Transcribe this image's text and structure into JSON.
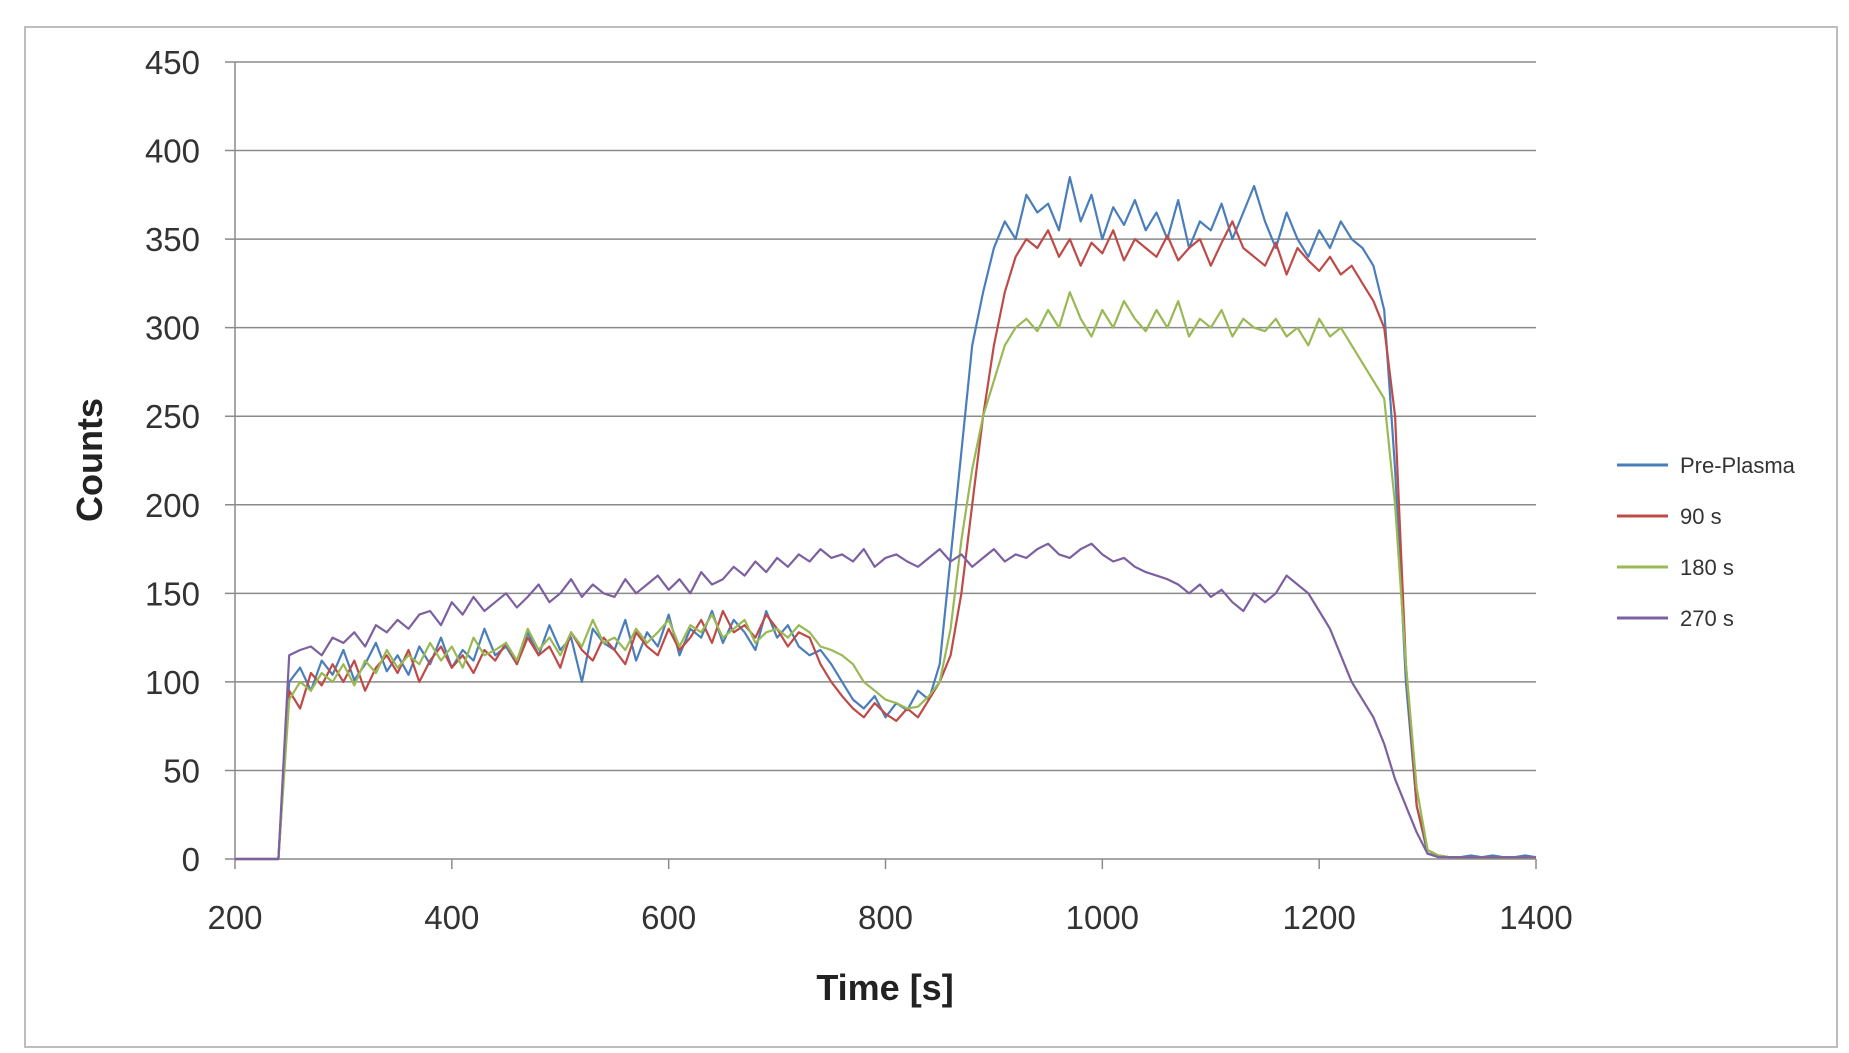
{
  "chart_data": {
    "type": "line",
    "title": "",
    "xlabel": "Time [s]",
    "ylabel": "Counts",
    "xlim": [
      200,
      1400
    ],
    "ylim": [
      0,
      450
    ],
    "xticks": [
      200,
      400,
      600,
      800,
      1000,
      1200,
      1400
    ],
    "yticks": [
      0,
      50,
      100,
      150,
      200,
      250,
      300,
      350,
      400,
      450
    ],
    "grid": "horizontal",
    "legend_position": "right",
    "x_start": 200,
    "x_step": 10,
    "series": [
      {
        "name": "Pre-Plasma",
        "color": "#4a7ebb",
        "values": [
          0,
          0,
          0,
          0,
          0,
          100,
          108,
          95,
          112,
          104,
          118,
          101,
          110,
          122,
          106,
          115,
          104,
          120,
          110,
          125,
          108,
          118,
          112,
          130,
          115,
          120,
          110,
          128,
          115,
          132,
          118,
          125,
          100,
          130,
          122,
          118,
          135,
          112,
          128,
          120,
          138,
          115,
          130,
          125,
          140,
          122,
          135,
          128,
          118,
          140,
          125,
          132,
          120,
          115,
          118,
          110,
          100,
          90,
          85,
          92,
          80,
          88,
          84,
          95,
          90,
          110,
          170,
          230,
          290,
          320,
          345,
          360,
          350,
          375,
          365,
          370,
          355,
          385,
          360,
          375,
          350,
          368,
          358,
          372,
          355,
          365,
          350,
          372,
          345,
          360,
          355,
          370,
          350,
          365,
          380,
          360,
          345,
          365,
          350,
          340,
          355,
          345,
          360,
          350,
          345,
          335,
          310,
          220,
          100,
          30,
          3,
          2,
          1,
          1,
          2,
          1,
          2,
          1,
          1,
          2,
          1
        ]
      },
      {
        "name": "90 s",
        "color": "#be4b48",
        "values": [
          0,
          0,
          0,
          0,
          0,
          95,
          85,
          105,
          98,
          110,
          100,
          112,
          95,
          108,
          115,
          105,
          118,
          100,
          112,
          120,
          108,
          115,
          105,
          118,
          112,
          122,
          110,
          125,
          115,
          120,
          108,
          128,
          118,
          112,
          125,
          118,
          110,
          128,
          120,
          115,
          130,
          118,
          125,
          135,
          122,
          140,
          128,
          132,
          125,
          138,
          130,
          120,
          128,
          125,
          110,
          100,
          92,
          85,
          80,
          88,
          82,
          78,
          85,
          80,
          90,
          100,
          115,
          150,
          200,
          250,
          290,
          320,
          340,
          350,
          345,
          355,
          340,
          350,
          335,
          348,
          342,
          355,
          338,
          350,
          345,
          340,
          352,
          338,
          345,
          350,
          335,
          348,
          360,
          345,
          340,
          335,
          348,
          330,
          345,
          338,
          332,
          340,
          330,
          335,
          325,
          315,
          300,
          250,
          110,
          30,
          5,
          2,
          1,
          1,
          1,
          1,
          1,
          1,
          1,
          1,
          1
        ]
      },
      {
        "name": "180 s",
        "color": "#98b954",
        "values": [
          0,
          0,
          0,
          0,
          0,
          90,
          100,
          95,
          105,
          100,
          110,
          98,
          112,
          105,
          118,
          108,
          115,
          110,
          122,
          112,
          120,
          108,
          125,
          115,
          118,
          122,
          112,
          130,
          118,
          125,
          115,
          128,
          120,
          135,
          122,
          125,
          118,
          130,
          122,
          128,
          135,
          120,
          132,
          128,
          138,
          125,
          130,
          135,
          122,
          128,
          130,
          125,
          132,
          128,
          120,
          118,
          115,
          110,
          100,
          95,
          90,
          88,
          85,
          86,
          92,
          100,
          130,
          180,
          220,
          250,
          270,
          290,
          300,
          305,
          298,
          310,
          300,
          320,
          305,
          295,
          310,
          300,
          315,
          305,
          298,
          310,
          300,
          315,
          295,
          305,
          300,
          310,
          295,
          305,
          300,
          298,
          305,
          295,
          300,
          290,
          305,
          295,
          300,
          290,
          280,
          270,
          260,
          200,
          110,
          40,
          5,
          2,
          1,
          1,
          1,
          1,
          1,
          1,
          1,
          1,
          1
        ]
      },
      {
        "name": "270 s",
        "color": "#7d60a0",
        "values": [
          0,
          0,
          0,
          0,
          0,
          115,
          118,
          120,
          115,
          125,
          122,
          128,
          120,
          132,
          128,
          135,
          130,
          138,
          140,
          132,
          145,
          138,
          148,
          140,
          145,
          150,
          142,
          148,
          155,
          145,
          150,
          158,
          148,
          155,
          150,
          148,
          158,
          150,
          155,
          160,
          152,
          158,
          150,
          162,
          155,
          158,
          165,
          160,
          168,
          162,
          170,
          165,
          172,
          168,
          175,
          170,
          172,
          168,
          175,
          165,
          170,
          172,
          168,
          165,
          170,
          175,
          168,
          172,
          165,
          170,
          175,
          168,
          172,
          170,
          175,
          178,
          172,
          170,
          175,
          178,
          172,
          168,
          170,
          165,
          162,
          160,
          158,
          155,
          150,
          155,
          148,
          152,
          145,
          140,
          150,
          145,
          150,
          160,
          155,
          150,
          140,
          130,
          115,
          100,
          90,
          80,
          65,
          45,
          30,
          15,
          3,
          1,
          1,
          1,
          1,
          1,
          1,
          1,
          1,
          1,
          1
        ]
      }
    ]
  }
}
